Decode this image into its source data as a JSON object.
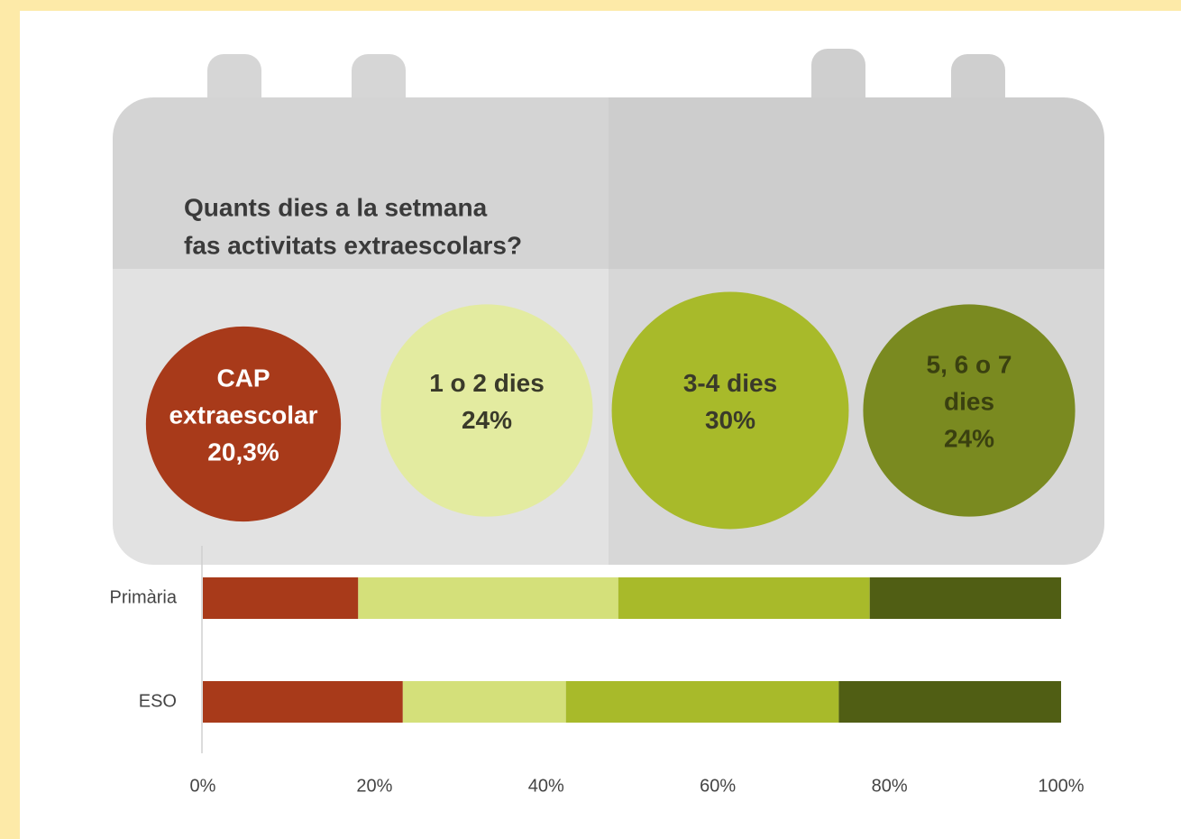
{
  "chart_data": [
    {
      "type": "bubble",
      "title": [
        "Quants dies a la setmana",
        "fas activitats extraescolars?"
      ],
      "categories": [
        [
          "CAP",
          "extraescolar"
        ],
        [
          "1 o 2 dies"
        ],
        [
          "3-4 dies"
        ],
        [
          "5, 6 o 7",
          "dies"
        ]
      ],
      "values": [
        20.3,
        24,
        30,
        24
      ],
      "value_labels": [
        "20,3%",
        "24%",
        "30%",
        "24%"
      ],
      "colors": [
        "#a83a1a",
        "#e3eba0",
        "#a8ba2a",
        "#7a8a20"
      ]
    },
    {
      "type": "stacked_bar",
      "categories": [
        "Primària",
        "ESO"
      ],
      "series": [
        {
          "color": "#a83a1a",
          "values": [
            18.1,
            23.3
          ]
        },
        {
          "color": "#d4e07a",
          "values": [
            30.3,
            19.0
          ]
        },
        {
          "color": "#a8ba2a",
          "values": [
            29.3,
            31.8
          ]
        },
        {
          "color": "#505e14",
          "values": [
            22.3,
            25.9
          ]
        }
      ],
      "xlim": [
        0,
        100
      ],
      "xticks": [
        {
          "value": 0,
          "label": "0%"
        },
        {
          "value": 20,
          "label": "20%"
        },
        {
          "value": 40,
          "label": "40%"
        },
        {
          "value": 60,
          "label": "60%"
        },
        {
          "value": 80,
          "label": "80%"
        },
        {
          "value": 100,
          "label": "100%"
        }
      ]
    }
  ]
}
